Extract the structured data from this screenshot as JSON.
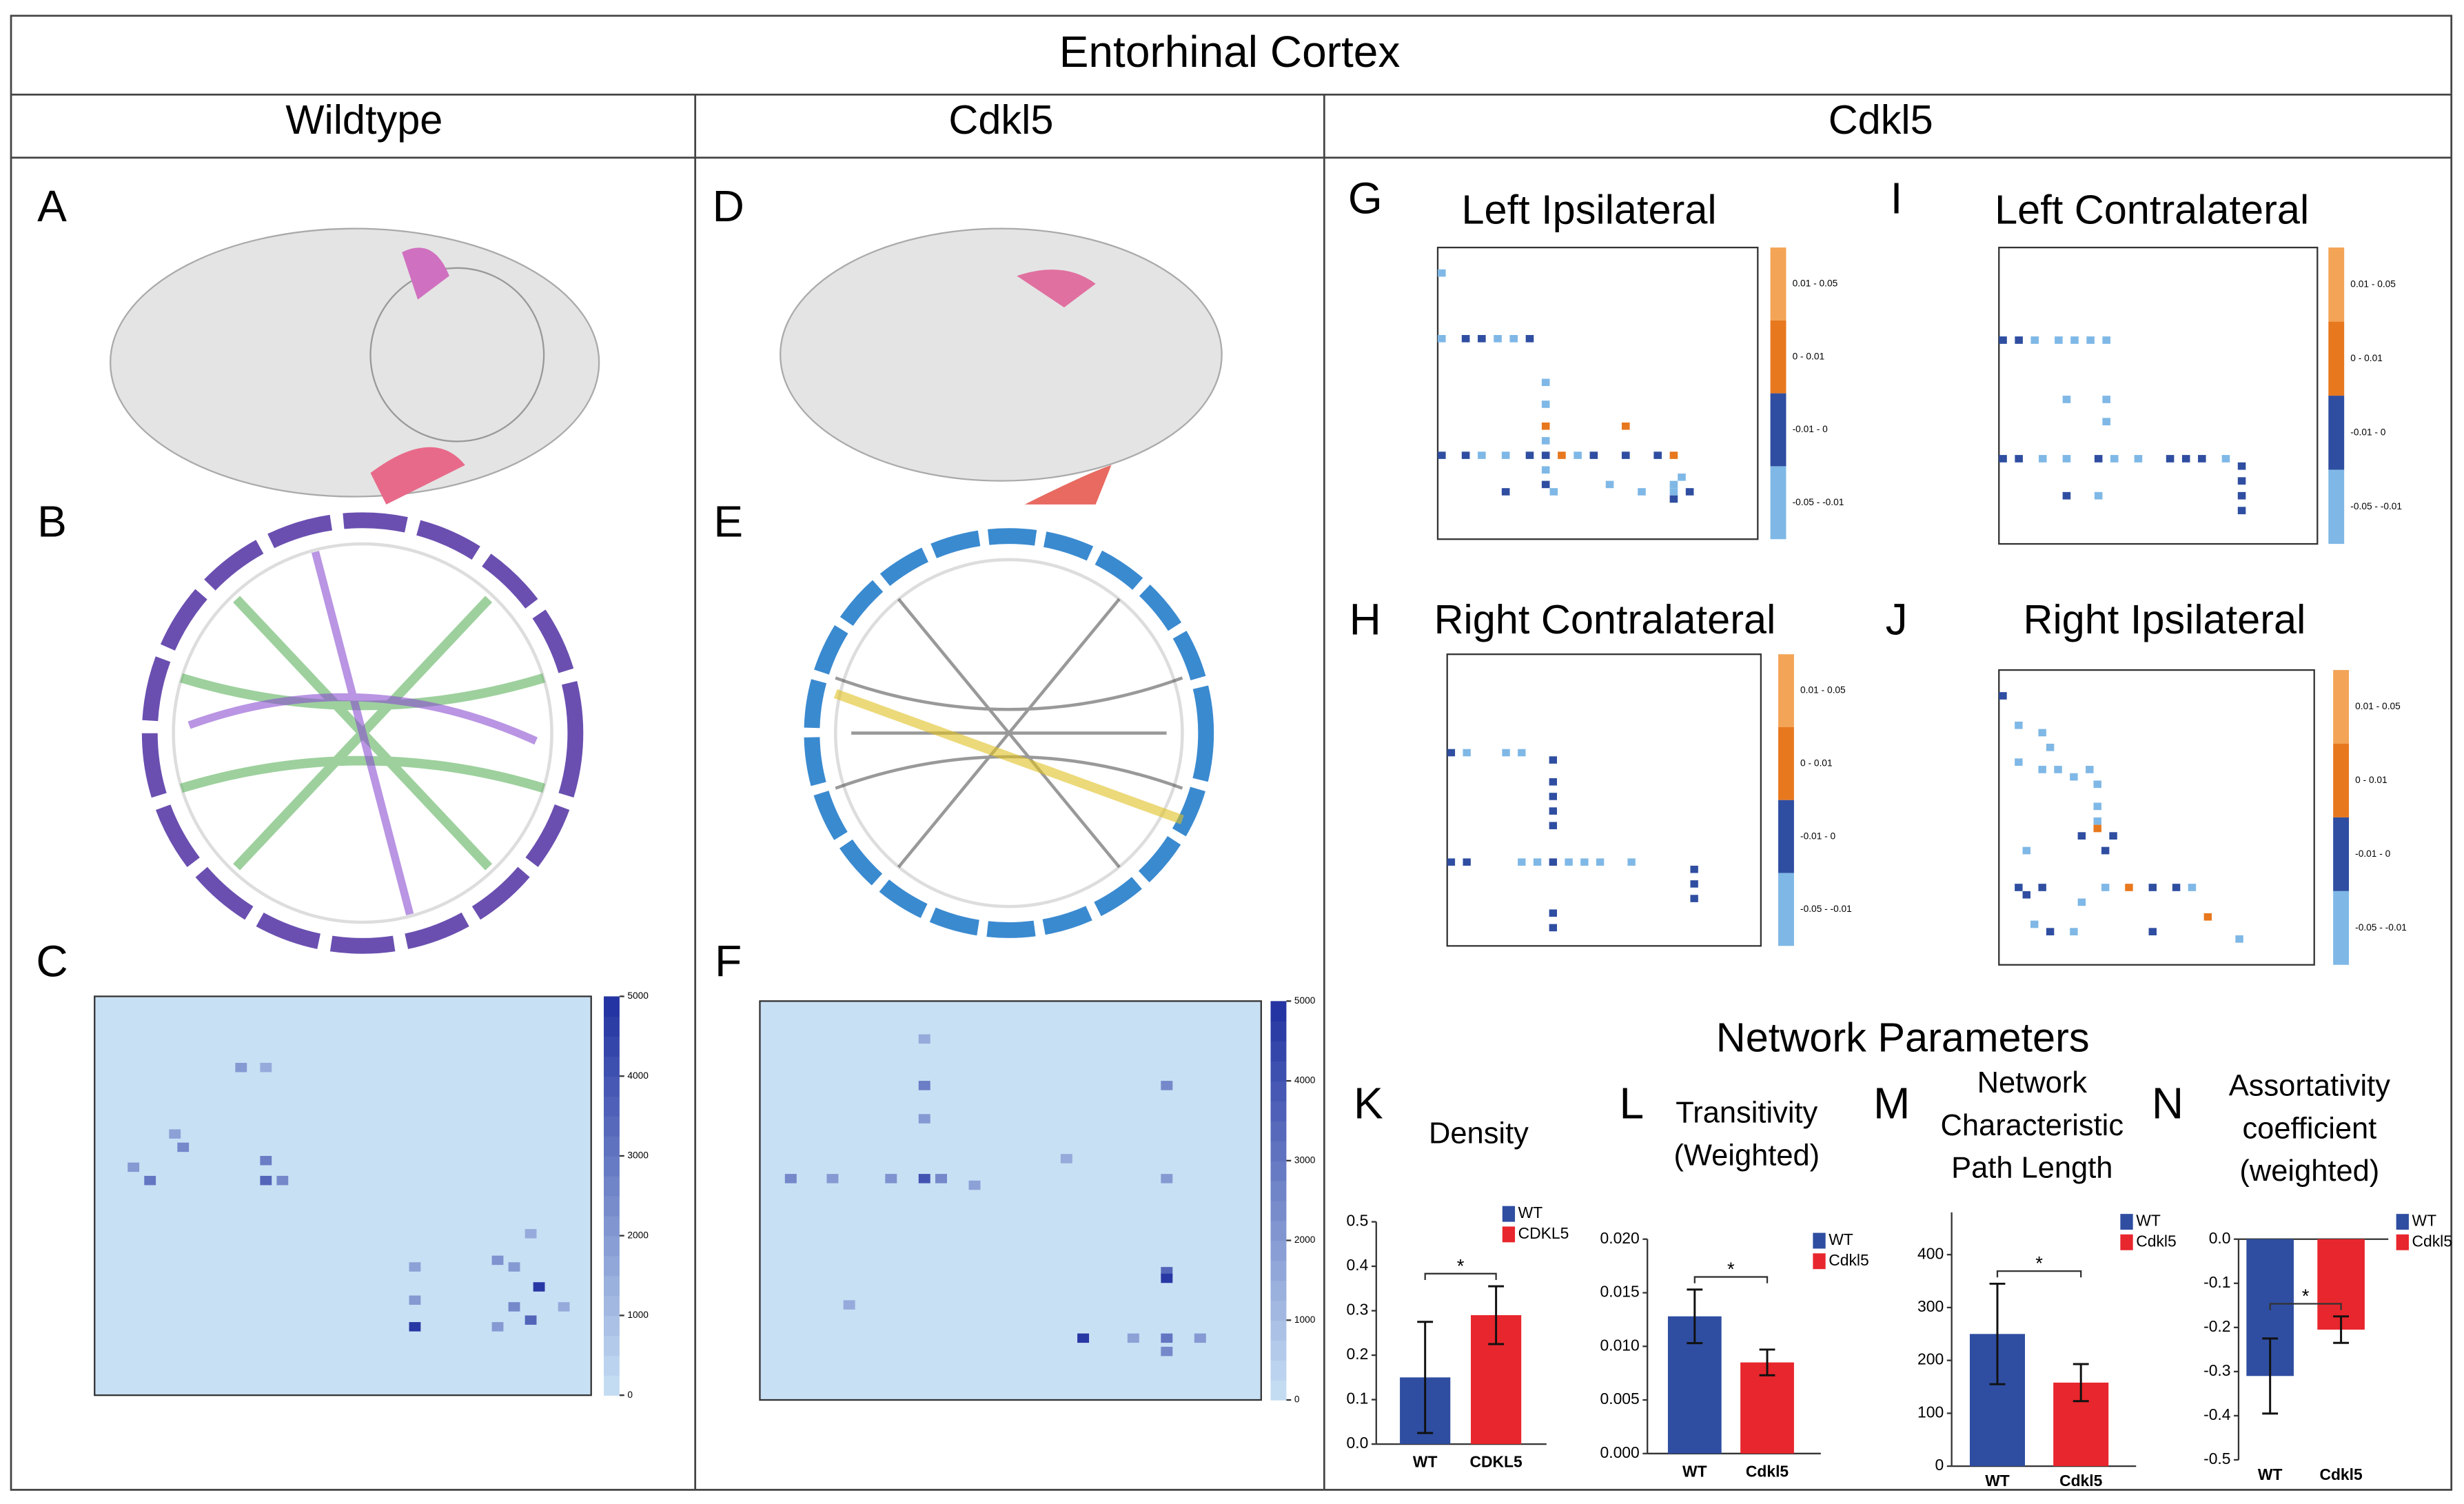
{
  "header": {
    "title": "Entorhinal Cortex",
    "columns": [
      "Wildtype",
      "Cdkl5",
      "Cdkl5"
    ]
  },
  "panel_letters": [
    "A",
    "B",
    "C",
    "D",
    "E",
    "F",
    "G",
    "I",
    "H",
    "J",
    "K",
    "L",
    "M",
    "N"
  ],
  "matrices": {
    "levels": [
      "0.01 - 0.05",
      "0 - 0.01",
      "-0.01 - 0",
      "-0.05 - -0.01"
    ],
    "level_colors": [
      "#f3a456",
      "#e8781e",
      "#2f4ea1",
      "#7fb8e6"
    ],
    "panels": [
      {
        "title": "Left Ipsilateral",
        "cells": [
          [
            3,
            0,
            3
          ],
          [
            12,
            0,
            3
          ],
          [
            12,
            3,
            2
          ],
          [
            12,
            5,
            2
          ],
          [
            12,
            7,
            3
          ],
          [
            12,
            9,
            3
          ],
          [
            12,
            11,
            2
          ],
          [
            18,
            13,
            3
          ],
          [
            21,
            13,
            3
          ],
          [
            24,
            13,
            1
          ],
          [
            26,
            13,
            3
          ],
          [
            24,
            23,
            1
          ],
          [
            28,
            0,
            2
          ],
          [
            28,
            3,
            2
          ],
          [
            28,
            5,
            3
          ],
          [
            28,
            8,
            3
          ],
          [
            28,
            11,
            2
          ],
          [
            28,
            13,
            2
          ],
          [
            28,
            15,
            1
          ],
          [
            28,
            17,
            3
          ],
          [
            28,
            19,
            2
          ],
          [
            28,
            23,
            2
          ],
          [
            28,
            27,
            2
          ],
          [
            28,
            29,
            1
          ],
          [
            30,
            13,
            3
          ],
          [
            32,
            13,
            2
          ],
          [
            32,
            21,
            3
          ],
          [
            33,
            8,
            2
          ],
          [
            33,
            14,
            3
          ],
          [
            33,
            25,
            3
          ],
          [
            33,
            29,
            3
          ],
          [
            33,
            31,
            2
          ],
          [
            31,
            30,
            3
          ],
          [
            32,
            29,
            3
          ],
          [
            34,
            29,
            2
          ]
        ]
      },
      {
        "title": "Left Contralateral",
        "cells": [
          [
            12,
            0,
            2
          ],
          [
            12,
            2,
            2
          ],
          [
            12,
            4,
            3
          ],
          [
            12,
            7,
            3
          ],
          [
            12,
            9,
            3
          ],
          [
            12,
            11,
            3
          ],
          [
            12,
            13,
            3
          ],
          [
            20,
            8,
            3
          ],
          [
            20,
            13,
            3
          ],
          [
            23,
            13,
            3
          ],
          [
            28,
            0,
            2
          ],
          [
            28,
            2,
            2
          ],
          [
            28,
            5,
            3
          ],
          [
            28,
            8,
            3
          ],
          [
            28,
            12,
            2
          ],
          [
            28,
            14,
            3
          ],
          [
            28,
            17,
            3
          ],
          [
            28,
            21,
            2
          ],
          [
            28,
            23,
            2
          ],
          [
            28,
            25,
            2
          ],
          [
            28,
            28,
            3
          ],
          [
            29,
            30,
            2
          ],
          [
            31,
            30,
            2
          ],
          [
            33,
            30,
            2
          ],
          [
            33,
            8,
            2
          ],
          [
            33,
            12,
            3
          ],
          [
            35,
            30,
            2
          ]
        ]
      },
      {
        "title": "Right Contralateral",
        "cells": [
          [
            13,
            0,
            2
          ],
          [
            13,
            2,
            3
          ],
          [
            13,
            7,
            3
          ],
          [
            13,
            9,
            3
          ],
          [
            14,
            13,
            2
          ],
          [
            17,
            13,
            2
          ],
          [
            19,
            13,
            2
          ],
          [
            21,
            13,
            2
          ],
          [
            23,
            13,
            2
          ],
          [
            28,
            0,
            2
          ],
          [
            28,
            2,
            2
          ],
          [
            28,
            9,
            3
          ],
          [
            28,
            11,
            3
          ],
          [
            28,
            13,
            2
          ],
          [
            28,
            15,
            3
          ],
          [
            28,
            17,
            3
          ],
          [
            28,
            19,
            3
          ],
          [
            28,
            23,
            3
          ],
          [
            29,
            31,
            2
          ],
          [
            31,
            31,
            2
          ],
          [
            33,
            31,
            2
          ],
          [
            35,
            13,
            2
          ],
          [
            37,
            13,
            2
          ]
        ]
      },
      {
        "title": "Right Ipsilateral",
        "cells": [
          [
            3,
            0,
            2
          ],
          [
            7,
            2,
            3
          ],
          [
            8,
            5,
            3
          ],
          [
            10,
            6,
            3
          ],
          [
            12,
            2,
            3
          ],
          [
            13,
            5,
            3
          ],
          [
            13,
            7,
            3
          ],
          [
            14,
            9,
            3
          ],
          [
            13,
            11,
            3
          ],
          [
            15,
            12,
            3
          ],
          [
            18,
            12,
            3
          ],
          [
            20,
            12,
            3
          ],
          [
            21,
            12,
            1
          ],
          [
            22,
            10,
            2
          ],
          [
            22,
            14,
            2
          ],
          [
            24,
            3,
            3
          ],
          [
            24,
            13,
            2
          ],
          [
            29,
            2,
            2
          ],
          [
            29,
            5,
            2
          ],
          [
            29,
            13,
            3
          ],
          [
            29,
            16,
            1
          ],
          [
            29,
            19,
            2
          ],
          [
            29,
            22,
            2
          ],
          [
            29,
            24,
            3
          ],
          [
            30,
            3,
            2
          ],
          [
            31,
            10,
            3
          ],
          [
            33,
            26,
            1
          ],
          [
            34,
            4,
            3
          ],
          [
            35,
            6,
            2
          ],
          [
            35,
            9,
            3
          ],
          [
            35,
            19,
            2
          ],
          [
            36,
            30,
            3
          ]
        ]
      }
    ]
  },
  "count_maps": {
    "lim": [
      0,
      5000
    ],
    "ticks": [
      0,
      1000,
      2000,
      3000,
      4000,
      5000
    ],
    "panels": [
      {
        "cells": [
          [
            22,
            10,
            2500
          ],
          [
            24,
            20,
            2800
          ],
          [
            27,
            20,
            3500
          ],
          [
            27,
            22,
            2500
          ],
          [
            25,
            4,
            2000
          ],
          [
            10,
            20,
            1500
          ],
          [
            10,
            17,
            2000
          ],
          [
            20,
            9,
            1800
          ],
          [
            40,
            38,
            1800
          ],
          [
            39,
            48,
            2200
          ],
          [
            45,
            38,
            2000
          ],
          [
            48,
            52,
            3500
          ],
          [
            46,
            56,
            1500
          ],
          [
            40,
            50,
            2000
          ],
          [
            35,
            52,
            1500
          ],
          [
            46,
            50,
            2500
          ],
          [
            49,
            48,
            2000
          ],
          [
            49,
            38,
            4800
          ],
          [
            43,
            53,
            4800
          ],
          [
            27,
            6,
            3000
          ]
        ]
      },
      {
        "cells": [
          [
            5,
            19,
            1500
          ],
          [
            12,
            19,
            2800
          ],
          [
            17,
            19,
            2000
          ],
          [
            26,
            3,
            2500
          ],
          [
            26,
            8,
            2000
          ],
          [
            26,
            15,
            2200
          ],
          [
            26,
            19,
            4000
          ],
          [
            26,
            21,
            2500
          ],
          [
            27,
            25,
            1800
          ],
          [
            12,
            48,
            2500
          ],
          [
            26,
            48,
            2000
          ],
          [
            40,
            48,
            3500
          ],
          [
            41,
            48,
            4800
          ],
          [
            50,
            38,
            4800
          ],
          [
            50,
            44,
            1800
          ],
          [
            50,
            48,
            3000
          ],
          [
            50,
            52,
            2000
          ],
          [
            52,
            48,
            2500
          ],
          [
            23,
            36,
            1500
          ],
          [
            45,
            10,
            1500
          ]
        ]
      }
    ]
  },
  "network_title": "Network Parameters",
  "chart_data": [
    {
      "type": "bar",
      "title": [
        "Density"
      ],
      "categories": [
        "WT",
        "CDKL5"
      ],
      "values": [
        0.15,
        0.29
      ],
      "errors": [
        0.125,
        0.065
      ],
      "colors": [
        "#2f4ea1",
        "#e8262d"
      ],
      "ylim": [
        0,
        0.5
      ],
      "yticks": [
        {
          "value": 0,
          "label": "0.0"
        },
        0.1,
        0.2,
        0.3,
        0.4,
        0.5
      ],
      "annotation": "*"
    },
    {
      "type": "bar",
      "title": [
        "Transitivity",
        "(Weighted)"
      ],
      "categories": [
        "WT",
        "Cdkl5"
      ],
      "values": [
        0.0128,
        0.0085
      ],
      "errors": [
        0.0025,
        0.0012
      ],
      "colors": [
        "#2f4ea1",
        "#e8262d"
      ],
      "ylim": [
        0,
        0.02
      ],
      "yticks": [
        {
          "value": 0,
          "label": "0.000"
        },
        {
          "value": 0.005,
          "label": "0.005"
        },
        {
          "value": 0.01,
          "label": "0.010"
        },
        {
          "value": 0.015,
          "label": "0.015"
        },
        {
          "value": 0.02,
          "label": "0.020"
        }
      ],
      "annotation": "*"
    },
    {
      "type": "bar",
      "title": [
        "Network",
        "Characteristic",
        "Path Length"
      ],
      "categories": [
        "WT",
        "Cdkl5"
      ],
      "values": [
        250,
        158
      ],
      "errors": [
        95,
        35
      ],
      "colors": [
        "#2f4ea1",
        "#e8262d"
      ],
      "ylim": [
        0,
        480
      ],
      "yticks": [
        0,
        100,
        200,
        300,
        400
      ],
      "annotation": "*"
    },
    {
      "type": "bar",
      "title": [
        "Assortativity",
        "coefficient",
        "(weighted)"
      ],
      "categories": [
        "WT",
        "Cdkl5"
      ],
      "values": [
        -0.31,
        -0.205
      ],
      "errors": [
        0.085,
        0.03
      ],
      "colors": [
        "#2f4ea1",
        "#e8262d"
      ],
      "ylim": [
        -0.5,
        0
      ],
      "yticks": [
        {
          "value": 0,
          "label": "0.0"
        },
        -0.1,
        -0.2,
        -0.3,
        -0.4,
        -0.5
      ],
      "annotation": "*"
    }
  ]
}
